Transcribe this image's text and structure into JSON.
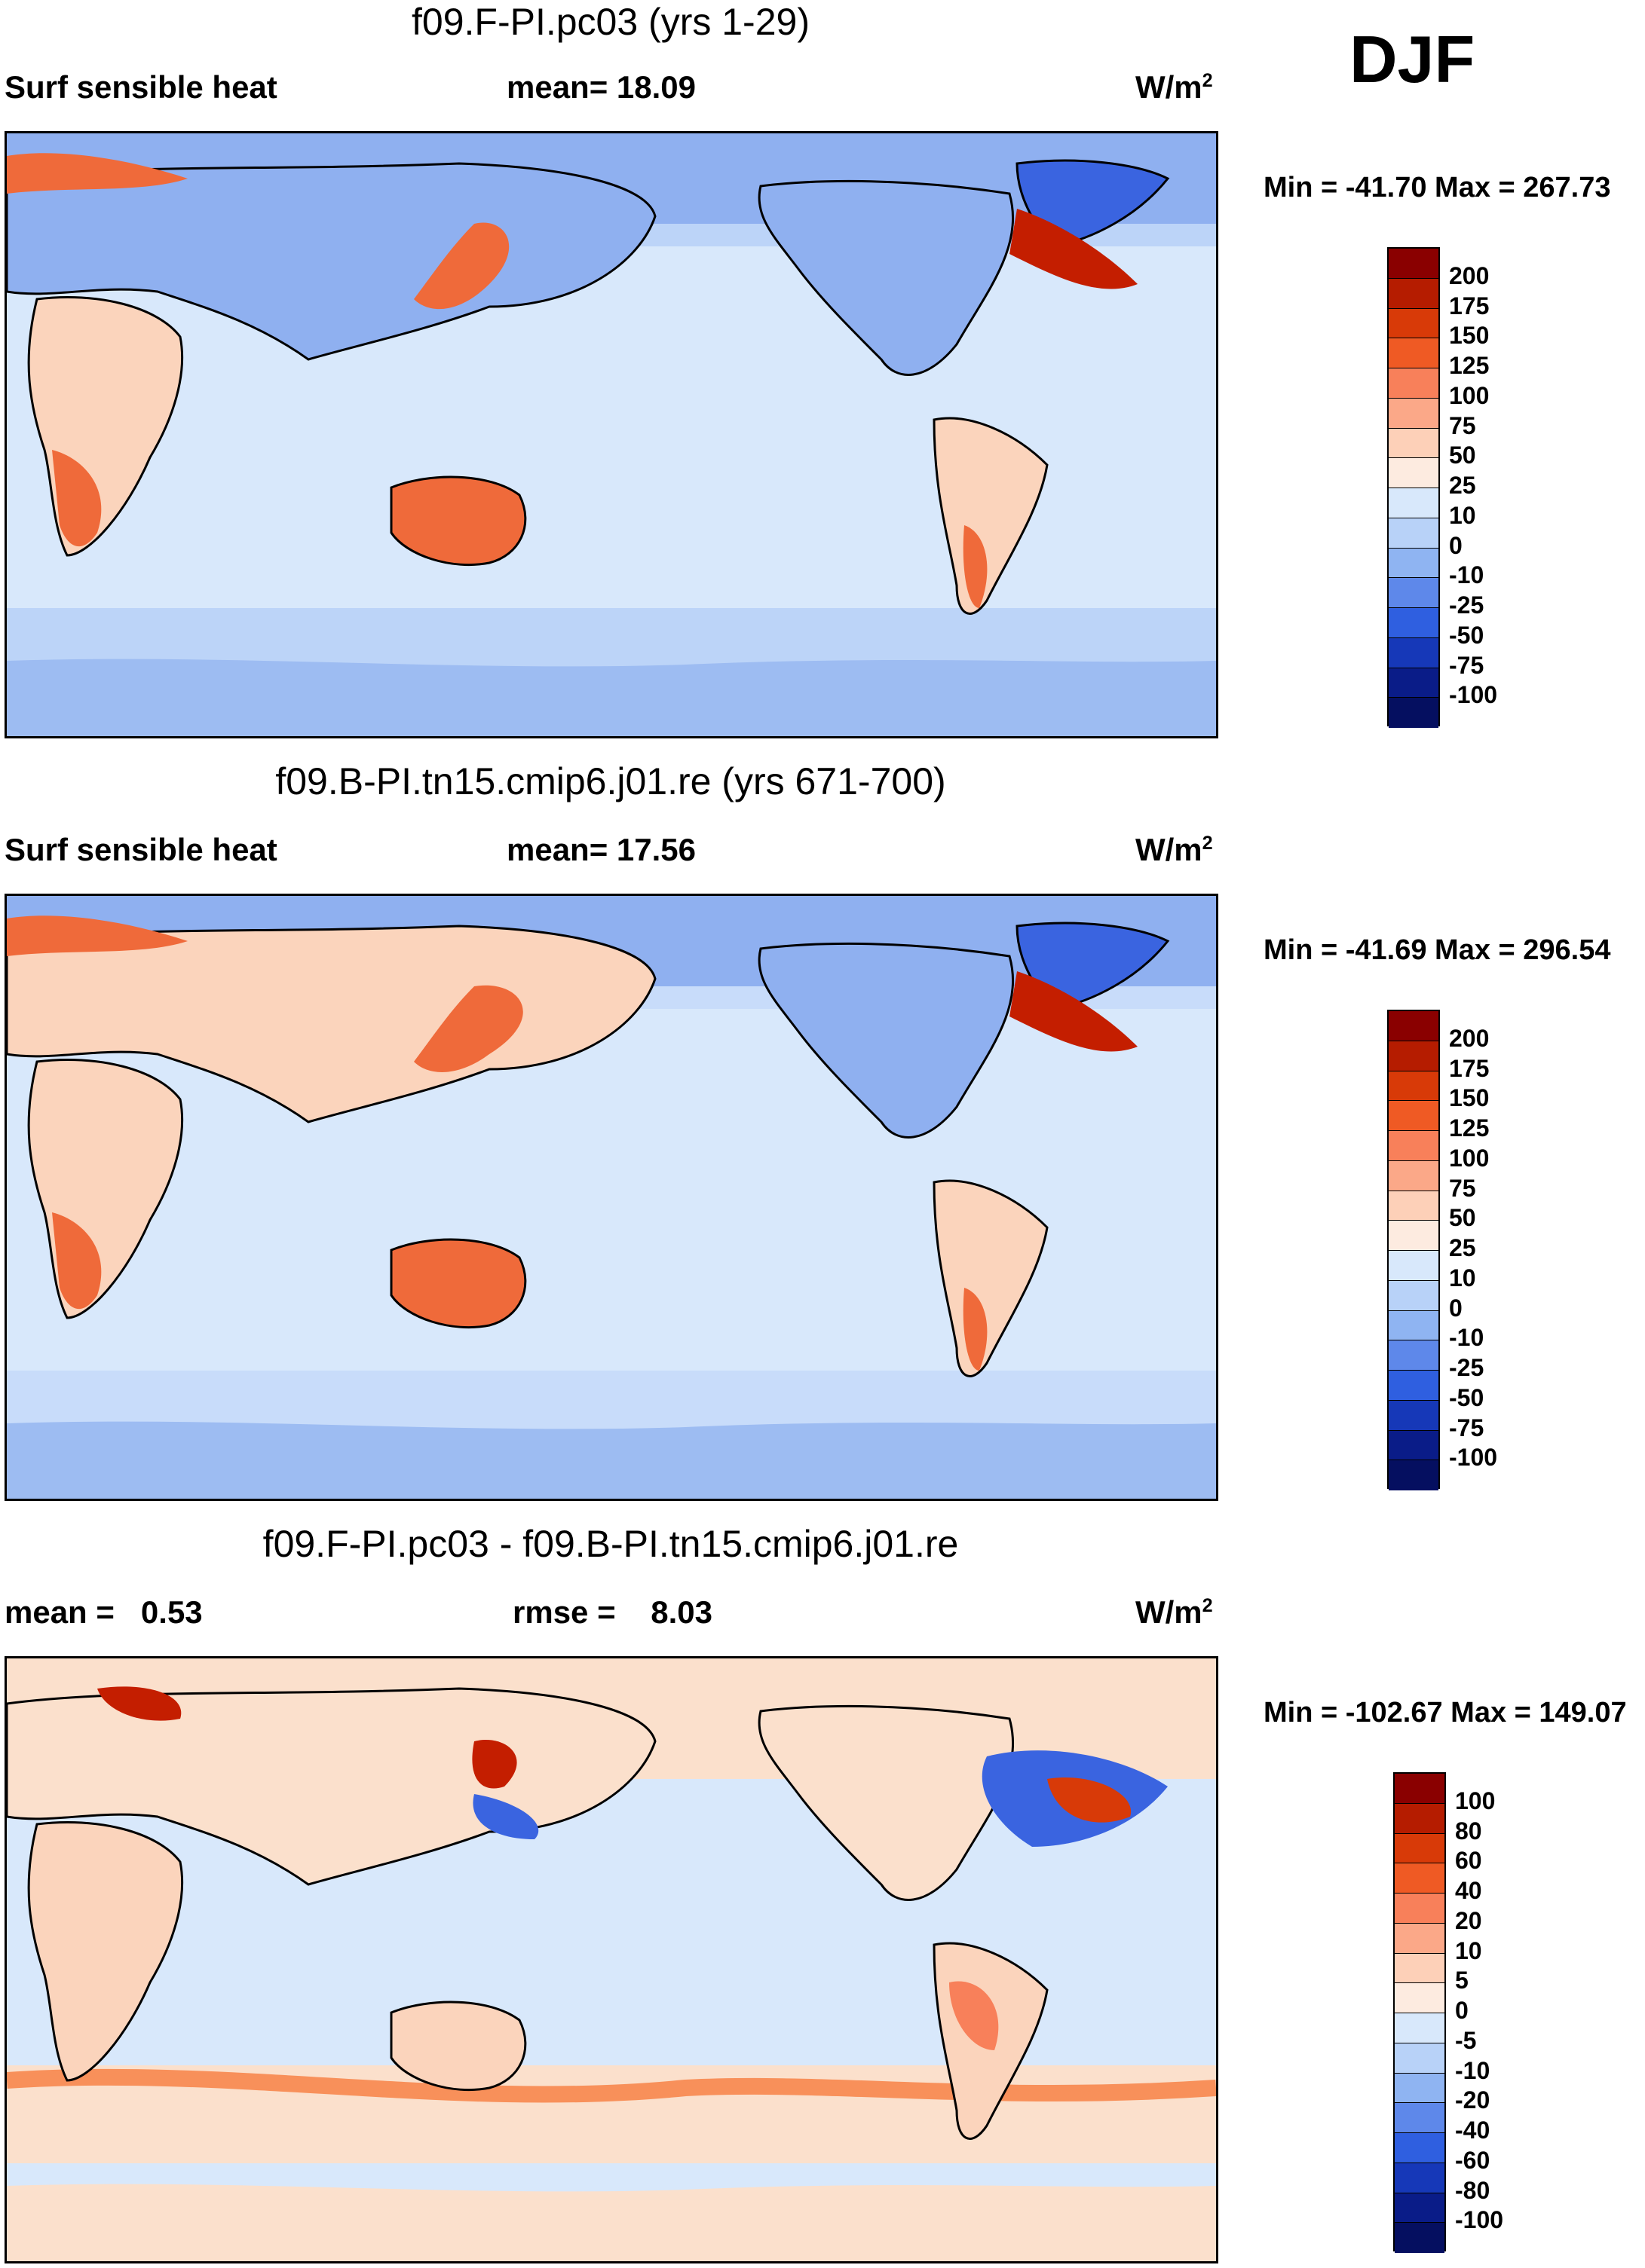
{
  "figure": {
    "season": "DJF"
  },
  "panels": [
    {
      "title": "f09.F-PI.pc03 (yrs 1-29)",
      "left_label": "Surf sensible heat",
      "center_label": "mean=  18.09",
      "units": "W/m",
      "units_exp": "2",
      "minmax": "Min = -41.70 Max = 267.73",
      "colorbar": {
        "levels": [
          "200",
          "175",
          "150",
          "125",
          "100",
          "75",
          "50",
          "25",
          "10",
          "0",
          "-10",
          "-25",
          "-50",
          "-75",
          "-100"
        ],
        "colors": [
          "#8a0000",
          "#b51c00",
          "#d83a08",
          "#ef5a24",
          "#f8805a",
          "#fba888",
          "#fdd0b8",
          "#fdebe0",
          "#d8e8fb",
          "#b8d2f8",
          "#8fb4f2",
          "#5e88ea",
          "#2f5fe0",
          "#1638b8",
          "#0a1c88",
          "#050f60"
        ]
      }
    },
    {
      "title": "f09.B-PI.tn15.cmip6.j01.re (yrs 671-700)",
      "left_label": "Surf sensible heat",
      "center_label": "mean=  17.56",
      "units": "W/m",
      "units_exp": "2",
      "minmax": "Min = -41.69 Max = 296.54",
      "colorbar": {
        "levels": [
          "200",
          "175",
          "150",
          "125",
          "100",
          "75",
          "50",
          "25",
          "10",
          "0",
          "-10",
          "-25",
          "-50",
          "-75",
          "-100"
        ],
        "colors": [
          "#8a0000",
          "#b51c00",
          "#d83a08",
          "#ef5a24",
          "#f8805a",
          "#fba888",
          "#fdd0b8",
          "#fdebe0",
          "#d8e8fb",
          "#b8d2f8",
          "#8fb4f2",
          "#5e88ea",
          "#2f5fe0",
          "#1638b8",
          "#0a1c88",
          "#050f60"
        ]
      }
    },
    {
      "title": "f09.F-PI.pc03 - f09.B-PI.tn15.cmip6.j01.re",
      "left_label": "mean =   0.53",
      "center_label": "rmse =    8.03",
      "units": "W/m",
      "units_exp": "2",
      "minmax": "Min = -102.67 Max = 149.07",
      "colorbar": {
        "levels": [
          "100",
          "80",
          "60",
          "40",
          "20",
          "10",
          "5",
          "0",
          "-5",
          "-10",
          "-20",
          "-40",
          "-60",
          "-80",
          "-100"
        ],
        "colors": [
          "#8a0000",
          "#b51c00",
          "#d83a08",
          "#ef5a24",
          "#f8805a",
          "#fba888",
          "#fdd0b8",
          "#fdebe0",
          "#d8e8fb",
          "#b8d2f8",
          "#8fb4f2",
          "#5e88ea",
          "#2f5fe0",
          "#1638b8",
          "#0a1c88",
          "#050f60"
        ]
      }
    }
  ],
  "palette": {
    "ocean_p1": "#bcd4f8",
    "ocean_p2": "#c8dcfa",
    "ocean_p3": "#d8e8fb",
    "land_warm": "#fbd4bc",
    "land_hot": "#ef6a3a",
    "cold": "#8fb0f0",
    "very_cold": "#3a64e0",
    "hot": "#c41e00",
    "diff_pos": "#fbe0cc"
  }
}
